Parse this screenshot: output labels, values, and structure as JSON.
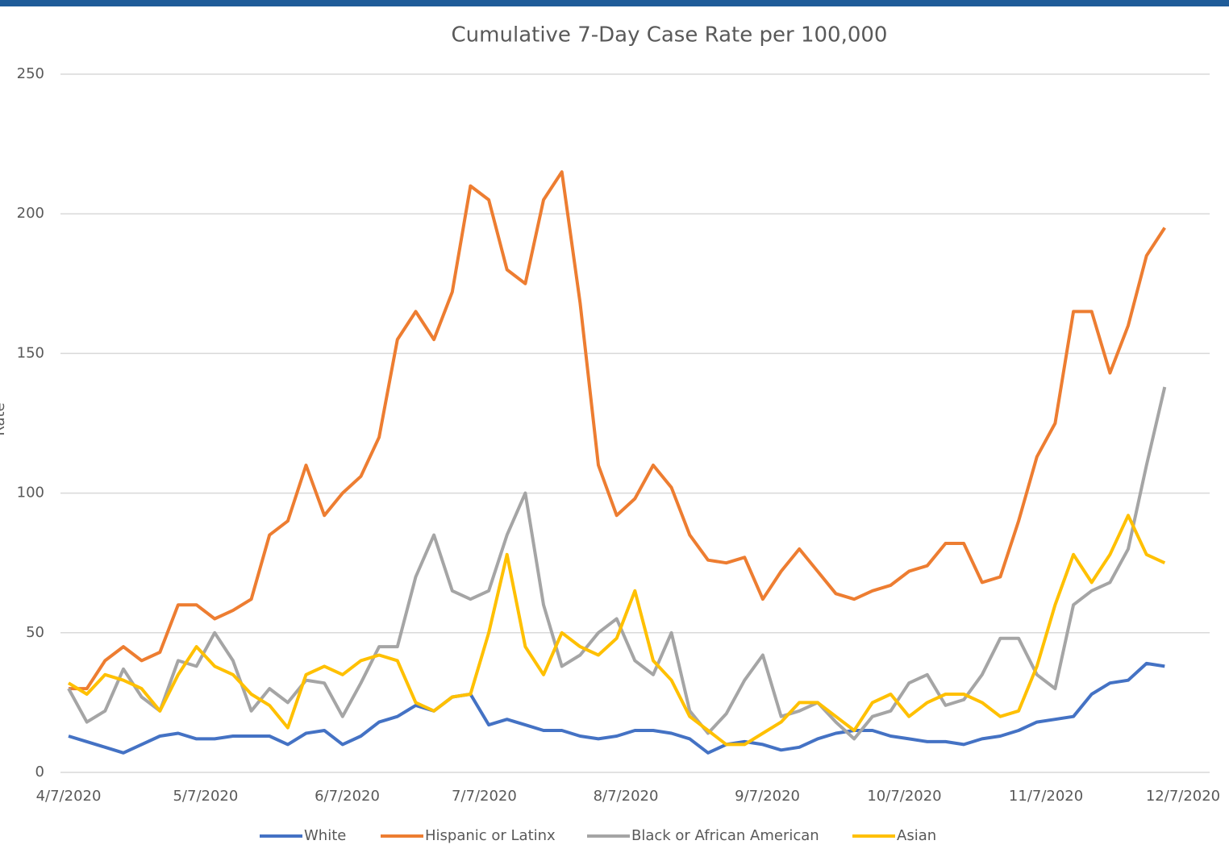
{
  "chart_data": {
    "type": "line",
    "title": "Cumulative 7-Day Case Rate per 100,000",
    "y_label": "Rate",
    "x": [
      "4/7/2020",
      "4/11/2020",
      "4/15/2020",
      "4/19/2020",
      "4/23/2020",
      "4/27/2020",
      "5/1/2020",
      "5/5/2020",
      "5/9/2020",
      "5/13/2020",
      "5/17/2020",
      "5/21/2020",
      "5/25/2020",
      "5/29/2020",
      "6/2/2020",
      "6/6/2020",
      "6/10/2020",
      "6/14/2020",
      "6/18/2020",
      "6/22/2020",
      "6/26/2020",
      "6/30/2020",
      "7/4/2020",
      "7/8/2020",
      "7/12/2020",
      "7/16/2020",
      "7/20/2020",
      "7/24/2020",
      "7/28/2020",
      "8/1/2020",
      "8/5/2020",
      "8/9/2020",
      "8/13/2020",
      "8/17/2020",
      "8/21/2020",
      "8/25/2020",
      "8/29/2020",
      "9/2/2020",
      "9/6/2020",
      "9/10/2020",
      "9/14/2020",
      "9/18/2020",
      "9/22/2020",
      "9/26/2020",
      "9/30/2020",
      "10/4/2020",
      "10/8/2020",
      "10/12/2020",
      "10/16/2020",
      "10/20/2020",
      "10/24/2020",
      "10/28/2020",
      "11/1/2020",
      "11/5/2020",
      "11/9/2020",
      "11/13/2020",
      "11/17/2020",
      "11/21/2020",
      "11/25/2020",
      "11/29/2020",
      "12/3/2020"
    ],
    "series": [
      {
        "name": "White",
        "color": "#4472c4",
        "values": [
          13,
          11,
          9,
          7,
          10,
          13,
          14,
          12,
          12,
          13,
          13,
          13,
          10,
          14,
          15,
          10,
          13,
          18,
          20,
          24,
          22,
          27,
          28,
          17,
          19,
          17,
          15,
          15,
          13,
          12,
          13,
          15,
          15,
          14,
          12,
          7,
          10,
          11,
          10,
          8,
          9,
          12,
          14,
          15,
          15,
          13,
          12,
          11,
          11,
          10,
          12,
          13,
          15,
          18,
          19,
          20,
          28,
          32,
          33,
          39,
          38
        ]
      },
      {
        "name": "Hispanic or Latinx",
        "color": "#ed7d31",
        "values": [
          30,
          30,
          40,
          45,
          40,
          43,
          60,
          60,
          55,
          58,
          62,
          85,
          90,
          110,
          92,
          100,
          106,
          120,
          155,
          165,
          155,
          172,
          210,
          205,
          180,
          175,
          205,
          215,
          168,
          110,
          92,
          98,
          110,
          102,
          85,
          76,
          75,
          77,
          62,
          72,
          80,
          72,
          64,
          62,
          65,
          67,
          72,
          74,
          82,
          82,
          68,
          70,
          90,
          113,
          125,
          165,
          165,
          143,
          160,
          185,
          195
        ]
      },
      {
        "name": "Black or African American",
        "color": "#a5a5a5",
        "values": [
          30,
          18,
          22,
          37,
          27,
          22,
          40,
          38,
          50,
          40,
          22,
          30,
          25,
          33,
          32,
          20,
          32,
          45,
          45,
          70,
          85,
          65,
          62,
          65,
          85,
          100,
          60,
          38,
          42,
          50,
          55,
          40,
          35,
          50,
          22,
          14,
          21,
          33,
          42,
          20,
          22,
          25,
          18,
          12,
          20,
          22,
          32,
          35,
          24,
          26,
          35,
          48,
          48,
          35,
          30,
          60,
          65,
          68,
          80,
          110,
          138
        ]
      },
      {
        "name": "Asian",
        "color": "#ffc000",
        "values": [
          32,
          28,
          35,
          33,
          30,
          22,
          35,
          45,
          38,
          35,
          28,
          24,
          16,
          35,
          38,
          35,
          40,
          42,
          40,
          25,
          22,
          27,
          28,
          50,
          78,
          45,
          35,
          50,
          45,
          42,
          48,
          65,
          40,
          33,
          20,
          15,
          10,
          10,
          14,
          18,
          25,
          25,
          20,
          15,
          25,
          28,
          20,
          25,
          28,
          28,
          25,
          20,
          22,
          38,
          60,
          78,
          68,
          78,
          92,
          78,
          75
        ]
      }
    ],
    "xlim": [
      "4/7/2020",
      "12/7/2020"
    ],
    "xticks": [
      "4/7/2020",
      "5/7/2020",
      "6/7/2020",
      "7/7/2020",
      "8/7/2020",
      "9/7/2020",
      "10/7/2020",
      "11/7/2020",
      "12/7/2020"
    ],
    "ylim": [
      0,
      250
    ],
    "yticks": [
      0,
      50,
      100,
      150,
      200,
      250
    ],
    "grid": true,
    "legend": "bottom"
  }
}
